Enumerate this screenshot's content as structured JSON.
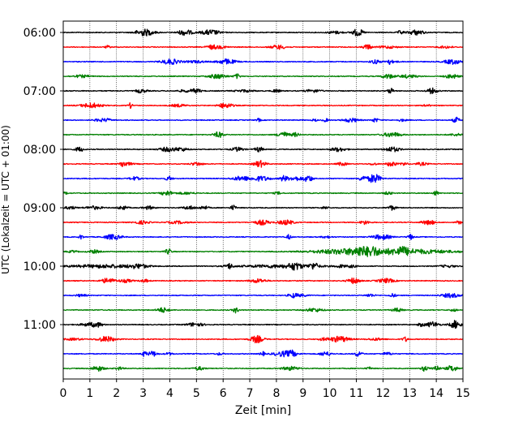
{
  "chart_data": {
    "type": "line",
    "title": "",
    "xlabel": "Zeit  [min]",
    "ylabel": "UTC (Lokalzeit = UTC + 01:00)",
    "xlim": [
      0,
      15
    ],
    "x_ticks": [
      "0",
      "1",
      "2",
      "3",
      "4",
      "5",
      "6",
      "7",
      "8",
      "9",
      "10",
      "11",
      "12",
      "13",
      "14",
      "15"
    ],
    "y_ticks": [
      "06:00",
      "07:00",
      "08:00",
      "09:00",
      "10:00",
      "11:00"
    ],
    "grid": "vertical dotted lines at each minute",
    "trace_minutes": 15,
    "traces_per_hour": 4,
    "trace_colors": [
      "#000000",
      "#ff0000",
      "#0000ff",
      "#008000"
    ],
    "traces": [
      {
        "start": "06:00",
        "color": "#000000"
      },
      {
        "start": "06:15",
        "color": "#ff0000"
      },
      {
        "start": "06:30",
        "color": "#0000ff"
      },
      {
        "start": "06:45",
        "color": "#008000"
      },
      {
        "start": "07:00",
        "color": "#000000"
      },
      {
        "start": "07:15",
        "color": "#ff0000"
      },
      {
        "start": "07:30",
        "color": "#0000ff"
      },
      {
        "start": "07:45",
        "color": "#008000"
      },
      {
        "start": "08:00",
        "color": "#000000"
      },
      {
        "start": "08:15",
        "color": "#ff0000"
      },
      {
        "start": "08:30",
        "color": "#0000ff"
      },
      {
        "start": "08:45",
        "color": "#008000"
      },
      {
        "start": "09:00",
        "color": "#000000"
      },
      {
        "start": "09:15",
        "color": "#ff0000"
      },
      {
        "start": "09:30",
        "color": "#0000ff"
      },
      {
        "start": "09:45",
        "color": "#008000"
      },
      {
        "start": "10:00",
        "color": "#000000"
      },
      {
        "start": "10:15",
        "color": "#ff0000"
      },
      {
        "start": "10:30",
        "color": "#0000ff"
      },
      {
        "start": "10:45",
        "color": "#008000"
      },
      {
        "start": "11:00",
        "color": "#000000"
      },
      {
        "start": "11:15",
        "color": "#ff0000"
      },
      {
        "start": "11:30",
        "color": "#0000ff"
      },
      {
        "start": "11:45",
        "color": "#008000"
      }
    ]
  }
}
